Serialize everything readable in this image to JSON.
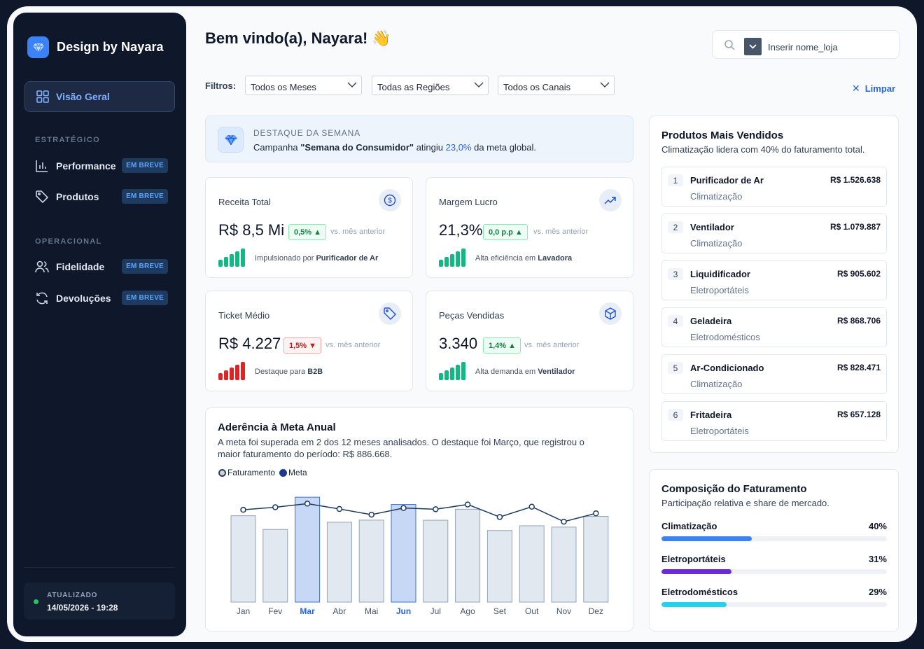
{
  "brand": {
    "name": "Design by Nayara"
  },
  "nav": {
    "active": "Visão Geral",
    "sections": [
      {
        "title": "ESTRATÉGICO",
        "items": [
          {
            "label": "Performance",
            "badge": "EM BREVE"
          },
          {
            "label": "Produtos",
            "badge": "EM BREVE"
          }
        ]
      },
      {
        "title": "OPERACIONAL",
        "items": [
          {
            "label": "Fidelidade",
            "badge": "EM BREVE"
          },
          {
            "label": "Devoluções",
            "badge": "EM BREVE"
          }
        ]
      }
    ],
    "updated_label": "ATUALIZADO",
    "updated_value": "14/05/2026 - 19:28"
  },
  "header": {
    "welcome": "Bem vindo(a), Nayara! 👋",
    "search_placeholder": "Inserir nome_loja"
  },
  "filters": {
    "label": "Filtros:",
    "months": "Todos os Meses",
    "regions": "Todas as Regiões",
    "channels": "Todos os Canais",
    "clear": "Limpar"
  },
  "highlight": {
    "title": "DESTAQUE DA SEMANA",
    "text_prefix": "Campanha ",
    "campaign": "\"Semana do Consumidor\"",
    "text_mid": " atingiu ",
    "percent": "23,0%",
    "text_suffix": " da meta global."
  },
  "kpis": [
    {
      "title": "Receita Total",
      "value": "R$ 8,5 Mi",
      "delta": "0,5% ▲",
      "trend": "up",
      "vs": "vs. mês anterior",
      "foot_prefix": "Impulsionado por ",
      "foot_bold": "Purificador de Ar",
      "icon": "dollar-icon"
    },
    {
      "title": "Margem Lucro",
      "value": "21,3%",
      "delta": "0,0 p.p ▲",
      "trend": "up",
      "vs": "vs. mês anterior",
      "foot_prefix": "Alta eficiência em ",
      "foot_bold": "Lavadora",
      "icon": "trending-up-icon"
    },
    {
      "title": "Ticket Médio",
      "value": "R$ 4.227",
      "delta": "1,5% ▼",
      "trend": "down",
      "vs": "vs. mês anterior",
      "foot_prefix": "Destaque para ",
      "foot_bold": "B2B",
      "icon": "tag-icon"
    },
    {
      "title": "Peças Vendidas",
      "value": "3.340",
      "delta": "1,4% ▲",
      "trend": "up",
      "vs": "vs. mês anterior",
      "foot_prefix": "Alta demanda em ",
      "foot_bold": "Ventilador",
      "icon": "box-icon"
    }
  ],
  "colors": {
    "accent": "#2563eb",
    "up": "#16a34a",
    "down": "#dc2626",
    "bar": "#e2e8f0",
    "bar_hit": "#c7d8f7",
    "line": "#1e3a5f"
  },
  "chart": {
    "title": "Aderência à Meta Anual",
    "description": "A meta foi superada em 2 dos 12 meses analisados. O destaque foi Março, que registrou o maior faturamento do período: R$ 886.668.",
    "legend": [
      "Faturamento",
      "Meta"
    ]
  },
  "chart_data": {
    "type": "bar",
    "categories": [
      "Jan",
      "Fev",
      "Mar",
      "Abr",
      "Mai",
      "Jun",
      "Jul",
      "Ago",
      "Set",
      "Out",
      "Nov",
      "Dez"
    ],
    "series": [
      {
        "name": "Faturamento",
        "values": [
          730000,
          614000,
          886668,
          675000,
          693000,
          825000,
          692000,
          785000,
          605000,
          645000,
          634000,
          725000
        ]
      },
      {
        "name": "Meta",
        "values": [
          780000,
          802000,
          832000,
          787000,
          739000,
          795000,
          785000,
          825000,
          719000,
          806000,
          680000,
          750000
        ]
      }
    ],
    "highlighted": [
      "Mar",
      "Jun"
    ],
    "ylim": [
      0,
      1000000
    ],
    "grid": false,
    "legend_position": "top-left"
  },
  "ranking": {
    "title": "Produtos Mais Vendidos",
    "subtitle": "Climatização lidera com 40% do faturamento total.",
    "items": [
      {
        "rank": "1",
        "name": "Purificador de Ar",
        "category": "Climatização",
        "value": "R$ 1.526.638"
      },
      {
        "rank": "2",
        "name": "Ventilador",
        "category": "Climatização",
        "value": "R$ 1.079.887"
      },
      {
        "rank": "3",
        "name": "Liquidificador",
        "category": "Eletroportáteis",
        "value": "R$ 905.602"
      },
      {
        "rank": "4",
        "name": "Geladeira",
        "category": "Eletrodomésticos",
        "value": "R$ 868.706"
      },
      {
        "rank": "5",
        "name": "Ar-Condicionado",
        "category": "Climatização",
        "value": "R$ 828.471"
      },
      {
        "rank": "6",
        "name": "Fritadeira",
        "category": "Eletroportáteis",
        "value": "R$ 657.128"
      }
    ]
  },
  "composition": {
    "title": "Composição do Faturamento",
    "subtitle": "Participação relativa e share de mercado.",
    "rows": [
      {
        "label": "Climatização",
        "pct_label": "40%",
        "share": 0.4,
        "color": "#3b82f6"
      },
      {
        "label": "Eletroportáteis",
        "pct_label": "31%",
        "share": 0.31,
        "color": "#6d28d9"
      },
      {
        "label": "Eletrodomésticos",
        "pct_label": "29%",
        "share": 0.29,
        "color": "#22d3ee"
      }
    ]
  }
}
